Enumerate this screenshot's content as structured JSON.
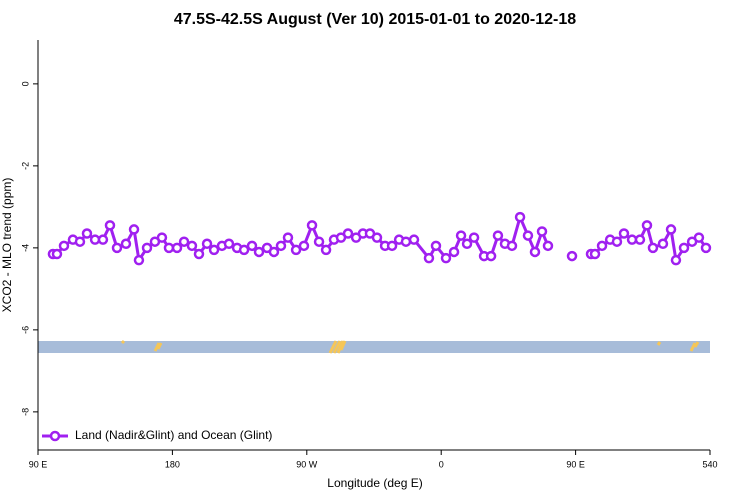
{
  "chart_data": {
    "type": "line",
    "title": "47.5S-42.5S August (Ver 10)   2015-01-01 to 2020-12-18",
    "x_label": "Longitude (deg E)",
    "y_label": "XCO2 - MLO trend (ppm)",
    "xlim": [
      90,
      540
    ],
    "xticks": [
      {
        "value": 90,
        "label": "90 E"
      },
      180,
      {
        "value": 270,
        "label": "90 W"
      },
      {
        "value": 360,
        "label": "0"
      },
      {
        "value": 450,
        "label": "90 E"
      },
      540
    ],
    "ylim": [
      -8.93,
      1.07
    ],
    "yticks": [
      0,
      -2,
      -4,
      -6,
      -8
    ],
    "legend": "bottom-left",
    "x": [
      100.0,
      102.7,
      107.4,
      113.4,
      118.1,
      122.8,
      128.2,
      133.5,
      138.2,
      142.9,
      148.9,
      154.3,
      157.6,
      163.0,
      168.3,
      173.0,
      177.7,
      183.1,
      187.8,
      193.1,
      197.8,
      203.2,
      207.9,
      213.2,
      217.9,
      223.3,
      228.0,
      233.3,
      238.0,
      243.4,
      248.0,
      252.7,
      257.4,
      262.8,
      268.1,
      273.5,
      278.2,
      282.9,
      288.2,
      292.9,
      297.6,
      303.0,
      307.6,
      312.3,
      317.0,
      322.4,
      327.1,
      331.8,
      336.4,
      341.8,
      351.8,
      356.5,
      363.2,
      368.6,
      373.3,
      377.3,
      382.0,
      388.7,
      393.4,
      398.0,
      402.7,
      407.4,
      412.8,
      418.1,
      422.8,
      427.5,
      431.5,
      null,
      447.6,
      null,
      460.3,
      463.0,
      467.7,
      473.1,
      477.7,
      482.4,
      487.8,
      493.1,
      497.8,
      501.8,
      508.5,
      513.9,
      517.2,
      522.6,
      528.0,
      532.6,
      537.3
    ],
    "series": [
      {
        "name": "Land (Nadir&Glint) and Ocean (Glint)",
        "color": "#a020f0",
        "values": [
          -4.15,
          -4.15,
          -3.95,
          -3.8,
          -3.85,
          -3.65,
          -3.8,
          -3.8,
          -3.45,
          -4.0,
          -3.9,
          -3.55,
          -4.3,
          -4.0,
          -3.85,
          -3.75,
          -4.0,
          -4.0,
          -3.85,
          -3.95,
          -4.15,
          -3.9,
          -4.05,
          -3.95,
          -3.9,
          -4.0,
          -4.05,
          -3.95,
          -4.1,
          -4.0,
          -4.1,
          -3.95,
          -3.75,
          -4.05,
          -3.95,
          -3.45,
          -3.85,
          -4.05,
          -3.8,
          -3.75,
          -3.65,
          -3.75,
          -3.65,
          -3.65,
          -3.75,
          -3.95,
          -3.95,
          -3.8,
          -3.85,
          -3.8,
          -4.25,
          -3.95,
          -4.25,
          -4.1,
          -3.7,
          -3.9,
          -3.75,
          -4.2,
          -4.2,
          -3.7,
          -3.9,
          -3.95,
          -3.25,
          -3.7,
          -4.1,
          -3.6,
          -3.95,
          null,
          -4.2,
          null,
          -4.15,
          -4.15,
          -3.95,
          -3.8,
          -3.85,
          -3.65,
          -3.8,
          -3.8,
          -3.45,
          -4.0,
          -3.9,
          -3.55,
          -4.3,
          -4.0,
          -3.85,
          -3.75,
          -4.0
        ]
      }
    ]
  }
}
